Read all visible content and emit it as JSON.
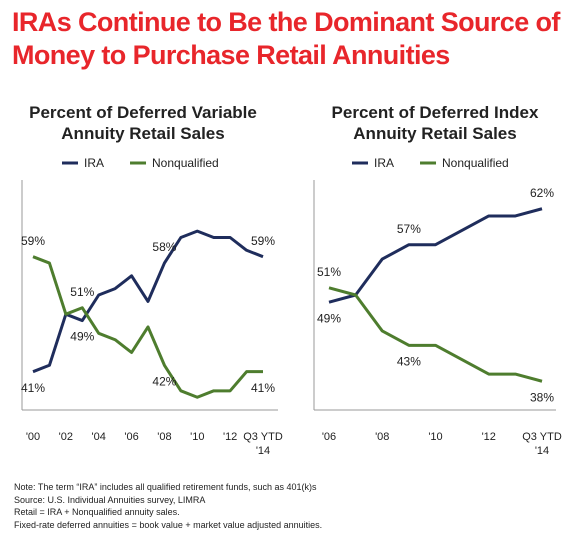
{
  "title": "IRAs Continue to Be the Dominant Source of Money to Purchase Retail Annuities",
  "chart_data": [
    {
      "type": "line",
      "title": "Percent of Deferred Variable Annuity Retail Sales",
      "categories": [
        "'00",
        null,
        "'02",
        null,
        "'04",
        null,
        "'06",
        null,
        "'08",
        null,
        "'10",
        null,
        "'12",
        null,
        "Q3 YTD '14"
      ],
      "series": [
        {
          "name": "IRA",
          "color": "#1f2d5c",
          "values": [
            41,
            42,
            50,
            49,
            53,
            54,
            56,
            52,
            58,
            62,
            63,
            62,
            62,
            60,
            59
          ],
          "value_labels": [
            "41%",
            null,
            null,
            "49%",
            null,
            null,
            null,
            null,
            "58%",
            null,
            null,
            null,
            null,
            null,
            "59%"
          ]
        },
        {
          "name": "Nonqualified",
          "color": "#4e7d2e",
          "values": [
            59,
            58,
            50,
            51,
            47,
            46,
            44,
            48,
            42,
            38,
            37,
            38,
            38,
            41,
            41
          ],
          "value_labels": [
            "59%",
            null,
            null,
            "51%",
            null,
            null,
            null,
            null,
            "42%",
            null,
            null,
            null,
            null,
            null,
            "41%"
          ]
        }
      ],
      "ylim": [
        35,
        71
      ]
    },
    {
      "type": "line",
      "title": "Percent of Deferred Index Annuity Retail Sales",
      "categories": [
        "'06",
        null,
        "'08",
        null,
        "'10",
        null,
        "'12",
        null,
        "Q3 YTD '14"
      ],
      "series": [
        {
          "name": "IRA",
          "color": "#1f2d5c",
          "values": [
            49,
            50,
            55,
            57,
            57,
            59,
            61,
            61,
            62
          ],
          "value_labels": [
            "49%",
            null,
            null,
            "57%",
            null,
            null,
            null,
            null,
            "62%"
          ]
        },
        {
          "name": "Nonqualified",
          "color": "#4e7d2e",
          "values": [
            51,
            50,
            45,
            43,
            43,
            41,
            39,
            39,
            38
          ],
          "value_labels": [
            "51%",
            null,
            null,
            "43%",
            null,
            null,
            null,
            null,
            "38%"
          ]
        }
      ],
      "ylim": [
        34,
        66
      ]
    }
  ],
  "notes": [
    "Note: The term “IRA” includes all qualified retirement funds, such as 401(k)s",
    "Source: U.S. Individual Annuities survey, LIMRA",
    "Retail = IRA + Nonqualified annuity sales.",
    "Fixed-rate deferred annuities = book value + market value adjusted annuities."
  ]
}
